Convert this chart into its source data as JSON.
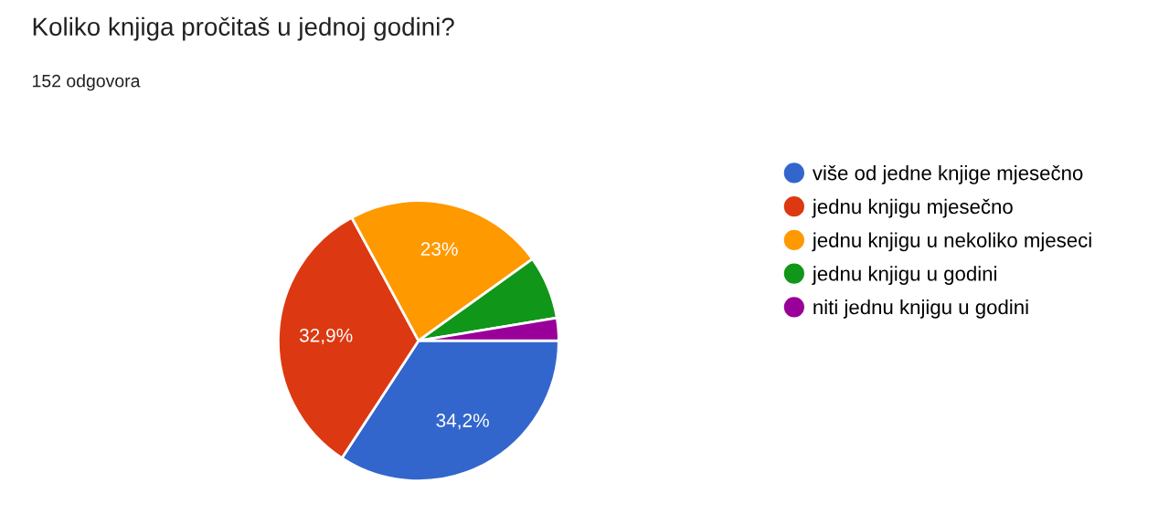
{
  "chart_data": {
    "type": "pie",
    "title": "Koliko knjiga pročitaš u jednoj godini?",
    "subtitle": "152 odgovora",
    "categories": [
      "više od jedne knjige mjesečno",
      "jednu knjigu mjesečno",
      "jednu knjigu u nekoliko mjeseci",
      "jednu knjigu u godini",
      "niti jednu knjigu u godini"
    ],
    "values": [
      34.2,
      32.9,
      23,
      7.3,
      2.6
    ],
    "value_labels": [
      "34,2%",
      "32,9%",
      "23%",
      null,
      null
    ],
    "colors": [
      "#3366cc",
      "#dc3912",
      "#ff9900",
      "#109618",
      "#990099"
    ],
    "legend": "right"
  }
}
